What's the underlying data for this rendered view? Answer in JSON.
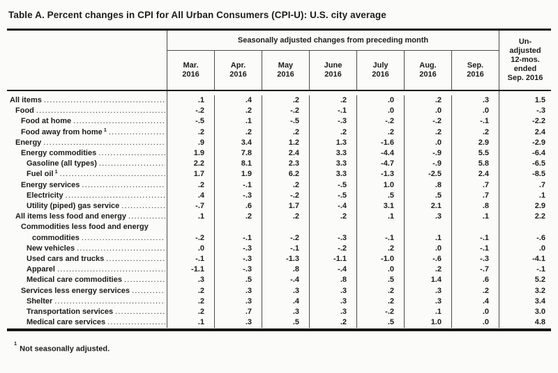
{
  "title": "Table A. Percent changes in CPI for All Urban Consumers (CPI-U): U.S. city average",
  "header": {
    "group_label": "Seasonally adjusted changes from preceding month",
    "months": [
      "Mar.\n2016",
      "Apr.\n2016",
      "May\n2016",
      "June\n2016",
      "July\n2016",
      "Aug.\n2016",
      "Sep.\n2016"
    ],
    "unadjusted_lines": [
      "Un-",
      "adjusted",
      "12-mos.",
      "ended",
      "Sep. 2016"
    ]
  },
  "rows": [
    {
      "label": "All items",
      "indent": 0,
      "values": [
        ".1",
        ".4",
        ".2",
        ".2",
        ".0",
        ".2",
        ".3",
        "1.5"
      ]
    },
    {
      "label": "Food",
      "indent": 1,
      "values": [
        "-.2",
        ".2",
        "-.2",
        "-.1",
        ".0",
        ".0",
        ".0",
        "-.3"
      ]
    },
    {
      "label": "Food at home",
      "indent": 2,
      "values": [
        "-.5",
        ".1",
        "-.5",
        "-.3",
        "-.2",
        "-.2",
        "-.1",
        "-2.2"
      ]
    },
    {
      "label": "Food away from home",
      "sup": "1",
      "indent": 2,
      "values": [
        ".2",
        ".2",
        ".2",
        ".2",
        ".2",
        ".2",
        ".2",
        "2.4"
      ]
    },
    {
      "label": "Energy",
      "indent": 1,
      "values": [
        ".9",
        "3.4",
        "1.2",
        "1.3",
        "-1.6",
        ".0",
        "2.9",
        "-2.9"
      ]
    },
    {
      "label": "Energy commodities",
      "indent": 2,
      "values": [
        "1.9",
        "7.8",
        "2.4",
        "3.3",
        "-4.4",
        "-.9",
        "5.5",
        "-6.4"
      ]
    },
    {
      "label": "Gasoline (all types)",
      "indent": 3,
      "values": [
        "2.2",
        "8.1",
        "2.3",
        "3.3",
        "-4.7",
        "-.9",
        "5.8",
        "-6.5"
      ]
    },
    {
      "label": "Fuel oil",
      "sup": "1",
      "indent": 3,
      "values": [
        "1.7",
        "1.9",
        "6.2",
        "3.3",
        "-1.3",
        "-2.5",
        "2.4",
        "-8.5"
      ]
    },
    {
      "label": "Energy services",
      "indent": 2,
      "values": [
        ".2",
        "-.1",
        ".2",
        "-.5",
        "1.0",
        ".8",
        ".7",
        ".7"
      ]
    },
    {
      "label": "Electricity",
      "indent": 3,
      "values": [
        ".4",
        "-.3",
        "-.2",
        "-.5",
        ".5",
        ".5",
        ".7",
        ".1"
      ]
    },
    {
      "label": "Utility (piped) gas service",
      "indent": 3,
      "values": [
        "-.7",
        ".6",
        "1.7",
        "-.4",
        "3.1",
        "2.1",
        ".8",
        "2.9"
      ]
    },
    {
      "label": "All items less food and energy",
      "indent": 1,
      "values": [
        ".1",
        ".2",
        ".2",
        ".2",
        ".1",
        ".3",
        ".1",
        "2.2"
      ]
    },
    {
      "label": "Commodities less food and energy",
      "label2": "commodities",
      "indent": 2,
      "values": [
        "-.2",
        "-.1",
        "-.2",
        "-.3",
        "-.1",
        ".1",
        "-.1",
        "-.6"
      ]
    },
    {
      "label": "New vehicles",
      "indent": 3,
      "values": [
        ".0",
        "-.3",
        "-.1",
        "-.2",
        ".2",
        ".0",
        "-.1",
        ".0"
      ]
    },
    {
      "label": "Used cars and trucks",
      "indent": 3,
      "values": [
        "-.1",
        "-.3",
        "-1.3",
        "-1.1",
        "-1.0",
        "-.6",
        "-.3",
        "-4.1"
      ]
    },
    {
      "label": "Apparel",
      "indent": 3,
      "values": [
        "-1.1",
        "-.3",
        ".8",
        "-.4",
        ".0",
        ".2",
        "-.7",
        "-.1"
      ]
    },
    {
      "label": "Medical care commodities",
      "indent": 3,
      "values": [
        ".3",
        ".5",
        "-.4",
        ".8",
        ".5",
        "1.4",
        ".6",
        "5.2"
      ]
    },
    {
      "label": "Services less energy services",
      "indent": 2,
      "values": [
        ".2",
        ".3",
        ".3",
        ".3",
        ".2",
        ".3",
        ".2",
        "3.2"
      ]
    },
    {
      "label": "Shelter",
      "indent": 3,
      "values": [
        ".2",
        ".3",
        ".4",
        ".3",
        ".2",
        ".3",
        ".4",
        "3.4"
      ]
    },
    {
      "label": "Transportation services",
      "indent": 3,
      "values": [
        ".2",
        ".7",
        ".3",
        ".3",
        "-.2",
        ".1",
        ".0",
        "3.0"
      ]
    },
    {
      "label": "Medical care services",
      "indent": 3,
      "values": [
        ".1",
        ".3",
        ".5",
        ".2",
        ".5",
        "1.0",
        ".0",
        "4.8"
      ]
    }
  ],
  "footnote": {
    "sup": "1",
    "text": "Not seasonally adjusted."
  }
}
